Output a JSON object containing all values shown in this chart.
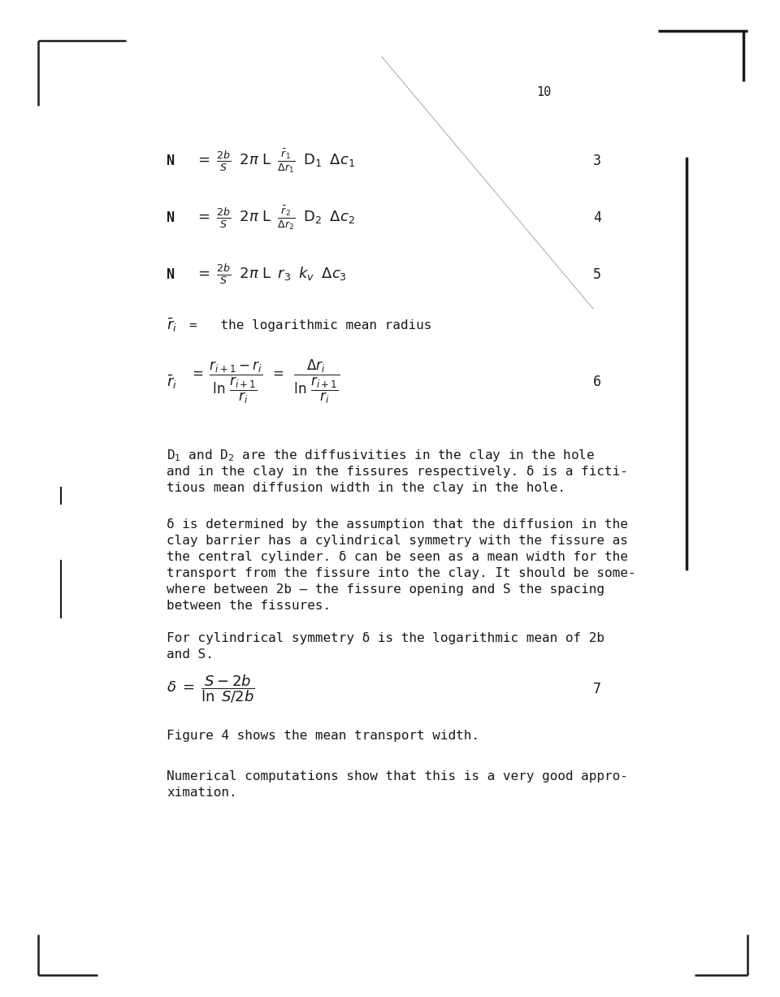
{
  "page_number": "10",
  "bg_color": "#ffffff",
  "text_color": "#1a1a1a",
  "border_color": "#1a1a1a",
  "diag_line_color": "#999999",
  "para1_line1": "D",
  "para1_line1b": "1",
  "para1_line1c": " and D",
  "para1_line1d": "2",
  "para1_line1e": " are the diffusivities in the clay in the hole",
  "para1_line2": "and in the clay in the fissures respectively. δ is a ficti-",
  "para1_line3": "tious mean diffusion width in the clay in the hole.",
  "para2_line1": "δ is determined by the assumption that the diffusion in the",
  "para2_line2": "clay barrier has a cylindrical symmetry with the fissure as",
  "para2_line3": "the central cylinder. δ can be seen as a mean width for the",
  "para2_line4": "transport from the fissure into the clay. It should be some-",
  "para2_line5": "where between 2b – the fissure opening and S the spacing",
  "para2_line6": "between the fissures.",
  "para3_line1": "For cylindrical symmetry δ is the logarithmic mean of 2b",
  "para3_line2": "and S.",
  "para4": "Figure 4 shows the mean transport width.",
  "para5_line1": "Numerical computations show that this is a very good appro-",
  "para5_line2": "ximation."
}
